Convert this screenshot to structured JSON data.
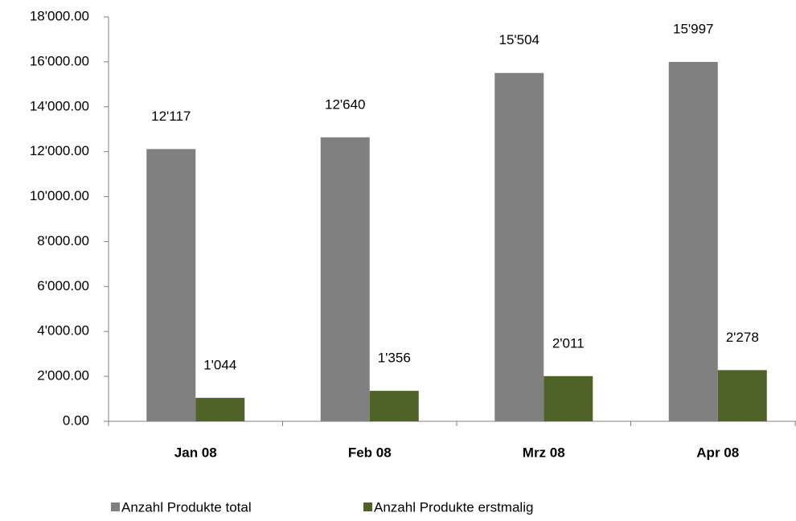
{
  "chart_data": {
    "type": "bar",
    "categories": [
      "Jan 08",
      "Feb 08",
      "Mrz 08",
      "Apr 08"
    ],
    "series": [
      {
        "name": "Anzahl Produkte total",
        "color": "#808080",
        "values": [
          12117,
          12640,
          15504,
          15997
        ],
        "value_labels": [
          "12'117",
          "12'640",
          "15'504",
          "15'997"
        ]
      },
      {
        "name": "Anzahl Produkte erstmalig",
        "color": "#4f6228",
        "values": [
          1044,
          1356,
          2011,
          2278
        ],
        "value_labels": [
          "1'044",
          "1'356",
          "2'011",
          "2'278"
        ]
      }
    ],
    "ylim": [
      0,
      18000
    ],
    "yticks": [
      {
        "value": 0,
        "label": "0.00"
      },
      {
        "value": 2000,
        "label": "2'000.00"
      },
      {
        "value": 4000,
        "label": "4'000.00"
      },
      {
        "value": 6000,
        "label": "6'000.00"
      },
      {
        "value": 8000,
        "label": "8'000.00"
      },
      {
        "value": 10000,
        "label": "10'000.00"
      },
      {
        "value": 12000,
        "label": "12'000.00"
      },
      {
        "value": 14000,
        "label": "14'000.00"
      },
      {
        "value": 16000,
        "label": "16'000.00"
      },
      {
        "value": 18000,
        "label": "18'000.00"
      }
    ],
    "legend": "bottom"
  }
}
